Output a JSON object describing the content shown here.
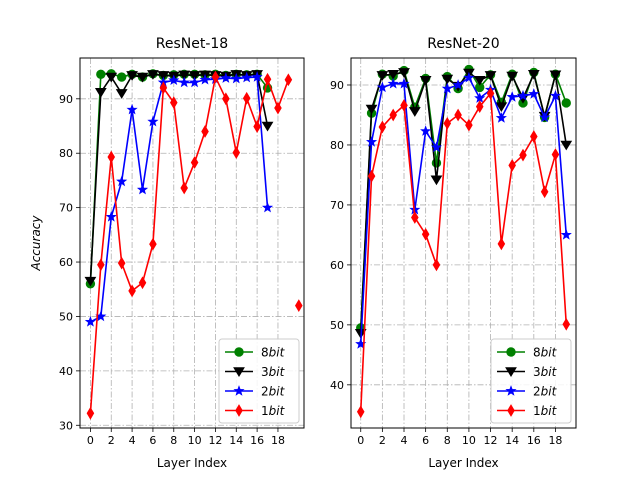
{
  "chart_data": [
    {
      "type": "line",
      "title": "ResNet-18",
      "xlabel": "Layer Index",
      "ylabel": "Accuracy",
      "xlim": [
        -1,
        20.5
      ],
      "ylim": [
        29.5,
        97.5
      ],
      "xticks": [
        0,
        2,
        4,
        6,
        8,
        10,
        12,
        14,
        16,
        18
      ],
      "yticks": [
        30,
        40,
        50,
        60,
        70,
        80,
        90
      ],
      "grid": true,
      "legend_position": "lower right",
      "series": [
        {
          "name": "8bit",
          "color": "#008000",
          "marker": "circle",
          "x": [
            0,
            1,
            2,
            3,
            4,
            5,
            6,
            7,
            8,
            9,
            10,
            11,
            12,
            13,
            14,
            15,
            16,
            17
          ],
          "y": [
            56.0,
            94.5,
            94.6,
            94.0,
            94.5,
            94.0,
            94.6,
            94.3,
            94.4,
            94.5,
            94.5,
            94.4,
            94.5,
            94.3,
            94.5,
            94.4,
            94.5,
            92.0
          ]
        },
        {
          "name": "3bit",
          "color": "#000000",
          "marker": "triangle-down",
          "x": [
            0,
            1,
            2,
            3,
            4,
            5,
            6,
            7,
            8,
            9,
            10,
            11,
            12,
            13,
            14,
            15,
            16,
            17
          ],
          "y": [
            56.5,
            91.2,
            94.0,
            91.0,
            94.3,
            94.0,
            94.5,
            94.3,
            94.2,
            94.4,
            94.3,
            94.4,
            94.3,
            94.2,
            94.5,
            94.3,
            94.5,
            85.0
          ]
        },
        {
          "name": "2bit",
          "color": "#0000ff",
          "marker": "star",
          "x": [
            0,
            1,
            2,
            3,
            4,
            5,
            6,
            7,
            8,
            9,
            10,
            11,
            12,
            13,
            14,
            15,
            16,
            17
          ],
          "y": [
            49.0,
            50.0,
            68.3,
            74.8,
            88.0,
            73.3,
            85.8,
            93.0,
            93.4,
            93.0,
            93.0,
            93.5,
            93.6,
            93.8,
            93.7,
            93.9,
            94.0,
            70.0
          ]
        },
        {
          "name": "1bit",
          "color": "#ff0000",
          "marker": "thin-diamond",
          "x": [
            0,
            1,
            2,
            3,
            4,
            5,
            6,
            7,
            8,
            9,
            10,
            11,
            12,
            13,
            14,
            15,
            16,
            17,
            18,
            19
          ],
          "y": [
            32.2,
            59.5,
            79.3,
            59.8,
            54.7,
            56.2,
            63.3,
            92.0,
            89.3,
            73.6,
            78.3,
            84.0,
            94.0,
            90.0,
            80.1,
            90.1,
            84.9,
            93.6,
            88.3,
            93.5
          ]
        }
      ],
      "extra_red_point": {
        "x": 20,
        "y": 52.0
      }
    },
    {
      "type": "line",
      "title": "ResNet-20",
      "xlabel": "Layer Index",
      "ylabel": "",
      "xlim": [
        -0.9,
        19.9
      ],
      "ylim": [
        32.8,
        94.5
      ],
      "xticks": [
        0,
        2,
        4,
        6,
        8,
        10,
        12,
        14,
        16,
        18
      ],
      "yticks": [
        40,
        50,
        60,
        70,
        80,
        90
      ],
      "grid": true,
      "legend_position": "lower right",
      "series": [
        {
          "name": "8bit",
          "color": "#008000",
          "marker": "circle",
          "x": [
            0,
            1,
            2,
            3,
            4,
            5,
            6,
            7,
            8,
            9,
            10,
            11,
            12,
            13,
            14,
            15,
            16,
            17,
            18,
            19
          ],
          "y": [
            49.5,
            85.3,
            91.8,
            91.5,
            92.4,
            86.3,
            91.1,
            77.0,
            91.4,
            89.4,
            92.6,
            89.6,
            91.7,
            87.1,
            91.8,
            87.0,
            92.1,
            84.6,
            91.8,
            87.0
          ]
        },
        {
          "name": "3bit",
          "color": "#000000",
          "marker": "triangle-down",
          "x": [
            0,
            1,
            2,
            3,
            4,
            5,
            6,
            7,
            8,
            9,
            10,
            11,
            12,
            13,
            14,
            15,
            16,
            17,
            18,
            19
          ],
          "y": [
            48.6,
            86.0,
            91.6,
            91.8,
            92.1,
            85.6,
            90.8,
            74.2,
            91.0,
            89.8,
            92.0,
            90.8,
            91.6,
            86.4,
            91.5,
            87.8,
            91.8,
            84.8,
            91.7,
            80.0
          ]
        },
        {
          "name": "2bit",
          "color": "#0000ff",
          "marker": "star",
          "x": [
            0,
            1,
            2,
            3,
            4,
            5,
            6,
            7,
            8,
            9,
            10,
            11,
            12,
            13,
            14,
            15,
            16,
            17,
            18,
            19
          ],
          "y": [
            46.8,
            80.5,
            89.6,
            90.2,
            90.2,
            69.2,
            82.3,
            79.6,
            89.4,
            90.0,
            91.2,
            87.8,
            89.2,
            84.5,
            88.0,
            88.2,
            88.5,
            84.6,
            88.2,
            65.0
          ]
        },
        {
          "name": "1bit",
          "color": "#ff0000",
          "marker": "thin-diamond",
          "x": [
            0,
            1,
            2,
            3,
            4,
            5,
            6,
            7,
            8,
            9,
            10,
            11,
            12,
            13,
            14,
            15,
            16,
            17,
            18,
            19
          ],
          "y": [
            35.5,
            74.8,
            83.0,
            85.0,
            86.6,
            67.9,
            65.1,
            60.0,
            83.6,
            85.0,
            83.3,
            86.4,
            88.6,
            63.5,
            76.6,
            78.3,
            81.4,
            72.2,
            78.4,
            50.1
          ]
        }
      ]
    }
  ]
}
